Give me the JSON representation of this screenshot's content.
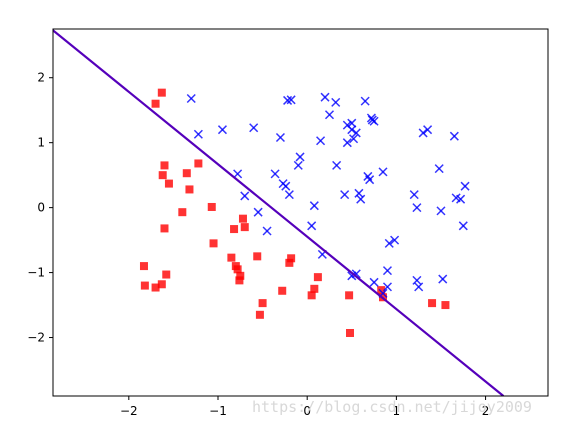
{
  "chart_data": {
    "type": "scatter",
    "title": "",
    "xlabel": "",
    "ylabel": "",
    "xlim": [
      -2.85,
      2.7
    ],
    "ylim": [
      -2.9,
      2.75
    ],
    "xticks": [
      -2,
      -1,
      0,
      1,
      2
    ],
    "yticks": [
      -2,
      -1,
      0,
      1,
      2
    ],
    "grid": false,
    "legend": "none",
    "series": [
      {
        "marker": "square",
        "color": "#ff0000",
        "points": [
          [
            -1.7,
            1.6
          ],
          [
            -1.63,
            1.77
          ],
          [
            -1.6,
            0.65
          ],
          [
            -1.62,
            0.5
          ],
          [
            -1.55,
            0.37
          ],
          [
            -1.6,
            -0.32
          ],
          [
            -1.35,
            0.53
          ],
          [
            -1.32,
            0.28
          ],
          [
            -1.4,
            -0.07
          ],
          [
            -1.22,
            0.68
          ],
          [
            -1.07,
            0.01
          ],
          [
            -1.05,
            -0.55
          ],
          [
            -0.82,
            -0.33
          ],
          [
            -0.85,
            -0.77
          ],
          [
            -0.8,
            -0.9
          ],
          [
            -0.78,
            -0.95
          ],
          [
            -0.72,
            -0.17
          ],
          [
            -0.7,
            -0.3
          ],
          [
            -0.75,
            -1.05
          ],
          [
            -0.76,
            -1.12
          ],
          [
            -0.56,
            -0.75
          ],
          [
            -0.53,
            -1.65
          ],
          [
            -0.5,
            -1.47
          ],
          [
            -0.28,
            -1.28
          ],
          [
            -0.2,
            -0.85
          ],
          [
            -0.18,
            -0.78
          ],
          [
            0.05,
            -1.35
          ],
          [
            0.08,
            -1.25
          ],
          [
            0.12,
            -1.07
          ],
          [
            0.47,
            -1.35
          ],
          [
            0.48,
            -1.93
          ],
          [
            0.83,
            -1.27
          ],
          [
            0.85,
            -1.38
          ],
          [
            1.4,
            -1.47
          ],
          [
            1.55,
            -1.5
          ],
          [
            -1.83,
            -0.9
          ],
          [
            -1.82,
            -1.2
          ],
          [
            -1.7,
            -1.23
          ],
          [
            -1.63,
            -1.18
          ],
          [
            -1.58,
            -1.03
          ]
        ]
      },
      {
        "marker": "x",
        "color": "#0000ff",
        "points": [
          [
            -1.3,
            1.68
          ],
          [
            -1.22,
            1.13
          ],
          [
            -0.95,
            1.2
          ],
          [
            -0.78,
            0.52
          ],
          [
            -0.7,
            0.18
          ],
          [
            -0.6,
            1.23
          ],
          [
            -0.55,
            -0.07
          ],
          [
            -0.45,
            -0.36
          ],
          [
            -0.36,
            0.52
          ],
          [
            -0.3,
            1.08
          ],
          [
            -0.27,
            0.37
          ],
          [
            -0.24,
            0.33
          ],
          [
            -0.22,
            1.65
          ],
          [
            -0.18,
            1.66
          ],
          [
            -0.2,
            0.2
          ],
          [
            -0.1,
            0.65
          ],
          [
            -0.08,
            0.78
          ],
          [
            0.05,
            -0.28
          ],
          [
            0.08,
            0.03
          ],
          [
            0.15,
            1.03
          ],
          [
            0.17,
            -0.72
          ],
          [
            0.2,
            1.7
          ],
          [
            0.25,
            1.43
          ],
          [
            0.32,
            1.62
          ],
          [
            0.33,
            0.65
          ],
          [
            0.42,
            0.2
          ],
          [
            0.45,
            1.27
          ],
          [
            0.45,
            1.0
          ],
          [
            0.5,
            1.3
          ],
          [
            0.5,
            1.2
          ],
          [
            0.52,
            1.06
          ],
          [
            0.55,
            1.15
          ],
          [
            0.58,
            0.22
          ],
          [
            0.6,
            0.13
          ],
          [
            0.65,
            1.64
          ],
          [
            0.68,
            0.48
          ],
          [
            0.7,
            0.43
          ],
          [
            0.73,
            1.35
          ],
          [
            0.72,
            1.38
          ],
          [
            0.75,
            1.33
          ],
          [
            0.85,
            0.55
          ],
          [
            0.92,
            -0.55
          ],
          [
            0.9,
            -0.97
          ],
          [
            0.98,
            -0.5
          ],
          [
            1.2,
            0.2
          ],
          [
            1.23,
            0.0
          ],
          [
            1.3,
            1.15
          ],
          [
            1.35,
            1.2
          ],
          [
            1.23,
            -1.12
          ],
          [
            1.25,
            -1.22
          ],
          [
            1.48,
            0.6
          ],
          [
            1.5,
            -0.05
          ],
          [
            1.52,
            -1.1
          ],
          [
            1.65,
            1.1
          ],
          [
            1.67,
            0.15
          ],
          [
            1.72,
            0.13
          ],
          [
            1.75,
            -0.28
          ],
          [
            1.77,
            0.33
          ],
          [
            0.5,
            -1.05
          ],
          [
            0.55,
            -1.02
          ],
          [
            0.75,
            -1.15
          ],
          [
            0.9,
            -1.22
          ],
          [
            0.85,
            -1.32
          ]
        ]
      },
      {
        "type": "line",
        "color": "#5500bb",
        "points": [
          [
            -2.85,
            2.73
          ],
          [
            2.2,
            -2.9
          ]
        ]
      }
    ]
  }
}
